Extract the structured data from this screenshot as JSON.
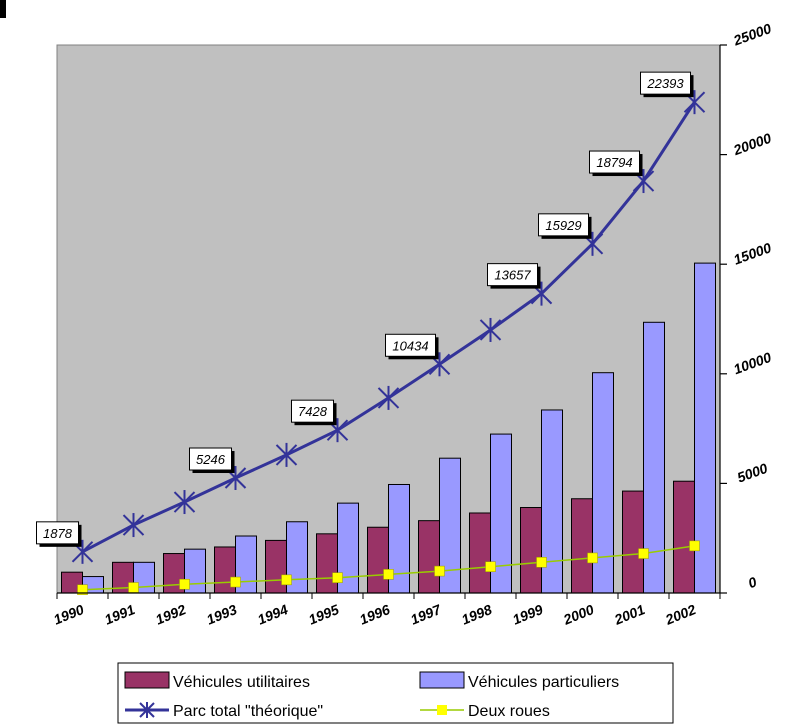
{
  "chart_data": {
    "type": "bar",
    "categories": [
      "1990",
      "1991",
      "1992",
      "1993",
      "1994",
      "1995",
      "1996",
      "1997",
      "1998",
      "1999",
      "2000",
      "2001",
      "2002"
    ],
    "ylim": [
      0,
      25000
    ],
    "yticks": [
      "0",
      "5000",
      "10000",
      "15000",
      "20000",
      "25000"
    ],
    "y_axis_side": "right",
    "grid": false,
    "legend_position": "bottom",
    "background_color": "#C0C0C0",
    "series": [
      {
        "name": "Véhicules utilitaires",
        "kind": "bar",
        "color": "#993366",
        "values": [
          950,
          1400,
          1800,
          2100,
          2400,
          2700,
          3000,
          3300,
          3650,
          3900,
          4300,
          4650,
          5100
        ]
      },
      {
        "name": "Véhicules particuliers",
        "kind": "bar",
        "color": "#9999FF",
        "values": [
          750,
          1400,
          2000,
          2600,
          3250,
          4100,
          4950,
          6150,
          7250,
          8350,
          10050,
          12350,
          15050
        ]
      },
      {
        "name": "Parc total \"théorique\"",
        "kind": "line",
        "color": "#333399",
        "marker": "asterisk",
        "values": [
          1878,
          3100,
          4150,
          5246,
          6300,
          7428,
          8900,
          10434,
          12000,
          13657,
          15929,
          18794,
          22393
        ]
      },
      {
        "name": "Deux roues",
        "kind": "line",
        "color": "#99CC00",
        "marker": "square",
        "marker_color": "#FFFF00",
        "values": [
          150,
          250,
          400,
          500,
          600,
          700,
          850,
          1000,
          1200,
          1400,
          1600,
          1800,
          2150
        ]
      }
    ],
    "data_labels": [
      {
        "series": 2,
        "index": 0,
        "text": "1878"
      },
      {
        "series": 2,
        "index": 3,
        "text": "5246"
      },
      {
        "series": 2,
        "index": 5,
        "text": "7428"
      },
      {
        "series": 2,
        "index": 7,
        "text": "10434"
      },
      {
        "series": 2,
        "index": 9,
        "text": "13657"
      },
      {
        "series": 2,
        "index": 10,
        "text": "15929"
      },
      {
        "series": 2,
        "index": 11,
        "text": "18794"
      },
      {
        "series": 2,
        "index": 12,
        "text": "22393"
      }
    ]
  }
}
